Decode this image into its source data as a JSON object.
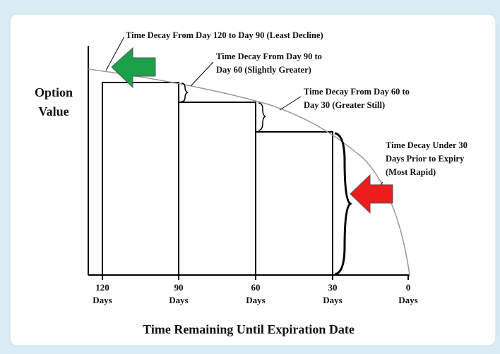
{
  "y_axis_label": [
    "Option",
    "Value"
  ],
  "x_axis_label": "Time Remaining Until Expiration Date",
  "x_ticks": [
    {
      "number": "120",
      "unit": "Days"
    },
    {
      "number": "90",
      "unit": "Days"
    },
    {
      "number": "60",
      "unit": "Days"
    },
    {
      "number": "30",
      "unit": "Days"
    },
    {
      "number": "0",
      "unit": "Days"
    }
  ],
  "annotations": [
    {
      "lines": [
        "Time Decay From Day 120 to Day 90 (Least Decline)"
      ]
    },
    {
      "lines": [
        "Time Decay From Day 90 to",
        "Day 60 (Slightly Greater)"
      ]
    },
    {
      "lines": [
        "Time Decay From Day 60 to",
        "Day 30 (Greater Still)"
      ]
    },
    {
      "lines": [
        "Time Decay Under 30",
        "Days Prior to Expiry",
        "(Most Rapid)"
      ]
    }
  ]
}
